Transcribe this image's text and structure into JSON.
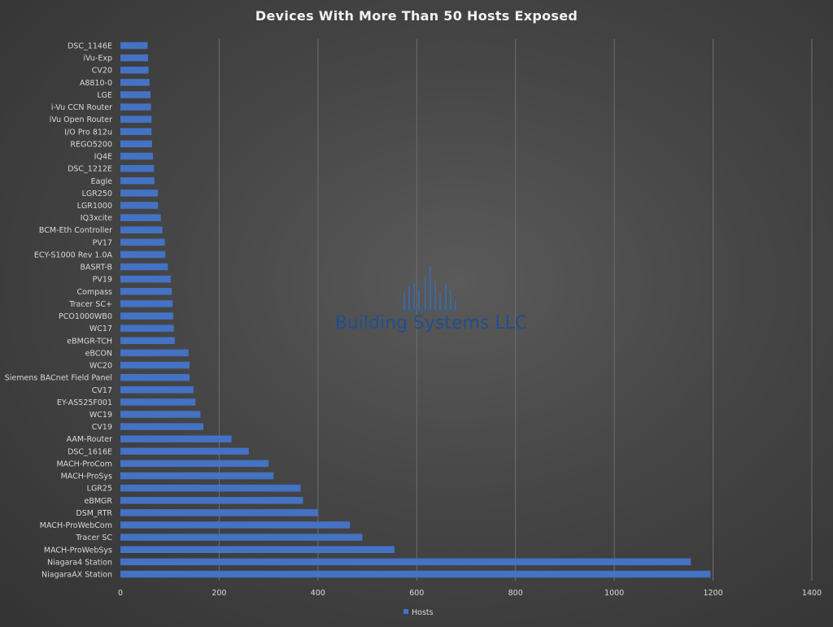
{
  "chart_data": {
    "type": "bar",
    "orientation": "horizontal",
    "title": "Devices With More Than 50 Hosts Exposed",
    "xlabel": "",
    "ylabel": "",
    "xlim": [
      0,
      1400
    ],
    "xticks": [
      0,
      200,
      400,
      600,
      800,
      1000,
      1200,
      1400
    ],
    "grid": true,
    "legend_position": "bottom",
    "categories": [
      "NiagaraAX Station",
      "Niagara4 Station",
      "MACH-ProWebSys",
      "Tracer SC",
      "MACH-ProWebCom",
      "DSM_RTR",
      "eBMGR",
      "LGR25",
      "MACH-ProSys",
      "MACH-ProCom",
      "DSC_1616E",
      "AAM-Router",
      "CV19",
      "WC19",
      "EY-AS525F001",
      "CV17",
      "Siemens BACnet Field Panel",
      "WC20",
      "eBCON",
      "eBMGR-TCH",
      "WC17",
      "PCO1000WB0",
      "Tracer SC+",
      "Compass",
      "PV19",
      "BASRT-B",
      "ECY-S1000 Rev 1.0A",
      "PV17",
      "BCM-Eth Controller",
      "IQ3xcite",
      "LGR1000",
      "LGR250",
      "Eagle",
      "DSC_1212E",
      "IQ4E",
      "REGO5200",
      "I/O Pro 812u",
      "iVu Open Router",
      "i-Vu CCN Router",
      "LGE",
      "A8810-0",
      "CV20",
      "iVu-Exp",
      "DSC_1146E"
    ],
    "series": [
      {
        "name": "Hosts",
        "color": "#4472c4",
        "values": [
          1195,
          1155,
          555,
          490,
          465,
          400,
          370,
          365,
          310,
          300,
          260,
          225,
          168,
          162,
          152,
          148,
          140,
          140,
          138,
          110,
          108,
          107,
          106,
          104,
          102,
          96,
          91,
          90,
          85,
          82,
          76,
          76,
          69,
          68,
          66,
          64,
          63,
          63,
          62,
          61,
          59,
          57,
          56,
          55
        ]
      }
    ]
  },
  "watermark": {
    "brand": "Building Systems LLC"
  }
}
